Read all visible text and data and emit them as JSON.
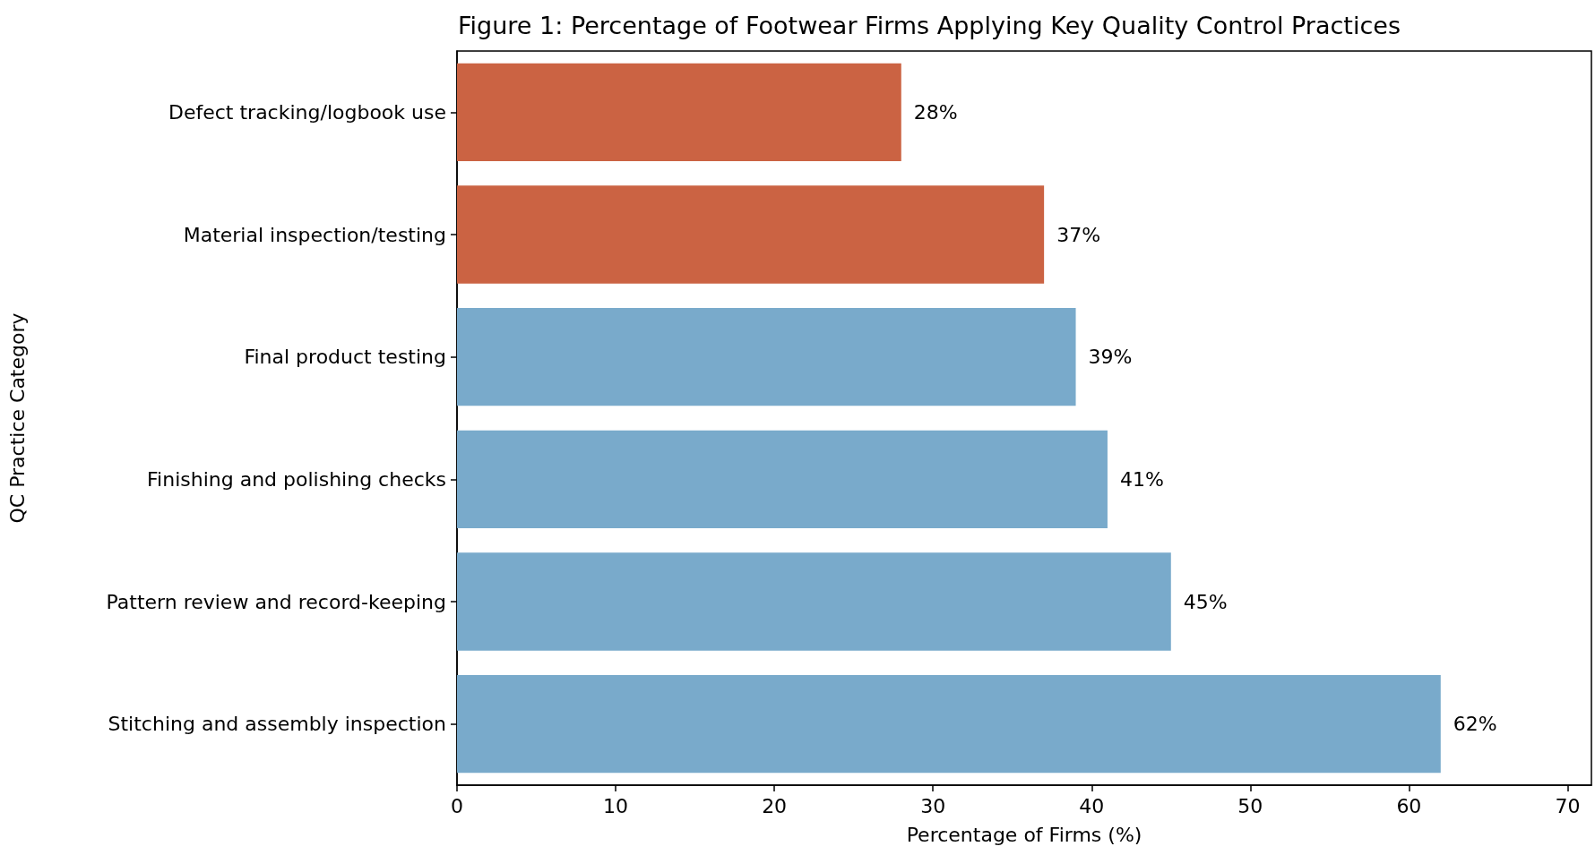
{
  "chart_data": {
    "type": "bar",
    "orientation": "horizontal",
    "title": "Figure 1: Percentage of Footwear Firms Applying Key Quality Control Practices",
    "xlabel": "Percentage of Firms (%)",
    "ylabel": "QC Practice Category",
    "categories": [
      "Defect tracking/logbook use",
      "Material inspection/testing",
      "Final product testing",
      "Finishing and polishing checks",
      "Pattern review and record-keeping",
      "Stitching and assembly inspection"
    ],
    "values": [
      28,
      37,
      39,
      41,
      45,
      62
    ],
    "value_labels": [
      "28%",
      "37%",
      "39%",
      "41%",
      "45%",
      "62%"
    ],
    "colors": [
      "#cb6343",
      "#cb6343",
      "#79aacb",
      "#79aacb",
      "#79aacb",
      "#79aacb"
    ],
    "xlim": [
      0,
      71.5
    ],
    "xticks": [
      0,
      10,
      20,
      30,
      40,
      50,
      60,
      70
    ],
    "grid": false
  }
}
